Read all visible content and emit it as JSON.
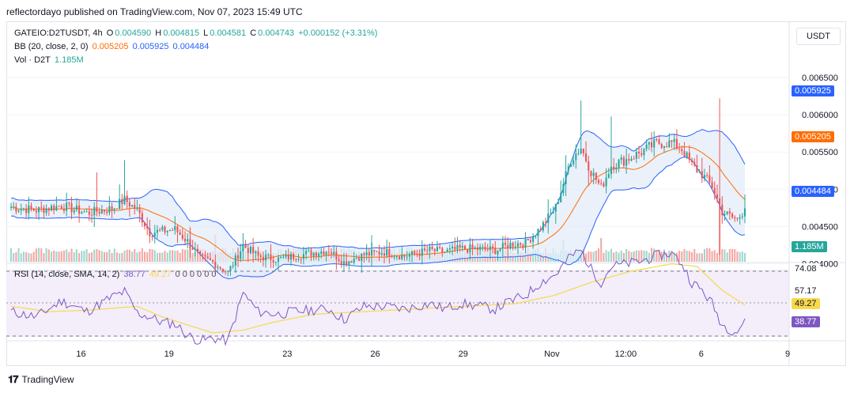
{
  "header": {
    "publisher": "reflectordayo published on TradingView.com, Nov 07, 2023 15:49 UTC"
  },
  "legend": {
    "symbol": "GATEIO:D2TUSDT, 4h",
    "ohlc": [
      {
        "k": "O",
        "v": "0.004590"
      },
      {
        "k": "H",
        "v": "0.004815"
      },
      {
        "k": "L",
        "v": "0.004581"
      },
      {
        "k": "C",
        "v": "0.004743"
      }
    ],
    "change": "+0.000152 (+3.31%)",
    "bb_label": "BB (20, close, 2, 0)",
    "bb_basis": "0.005205",
    "bb_upper": "0.005925",
    "bb_lower": "0.004484",
    "vol_label": "Vol · D2T",
    "vol_value": "1.185M",
    "rsi_label": "RSI (14, close, SMA, 14, 2)",
    "rsi_value": "38.77",
    "rsi_ma": "49.27",
    "rsi_extra": "0 0 0 0 0 0"
  },
  "currency": "USDT",
  "footer": {
    "brand": "TradingView"
  },
  "colors": {
    "up": "#26a69a",
    "down": "#ef5350",
    "bb_band": "#2962ff",
    "bb_basis": "#ff6d00",
    "bb_fill": "#e3ecfa",
    "rsi": "#7e57c2",
    "rsi_ma": "#f7d94c",
    "rsi_bg": "#f3eefa"
  },
  "chart_data": {
    "type": "candlestick",
    "price_axis": {
      "ticks": [
        0.0065,
        0.006,
        0.0055,
        0.005,
        0.0045,
        0.004
      ],
      "tick_labels": [
        "0.006500",
        "0.006000",
        "0.005500",
        "0.005000",
        "0.004500",
        "0.004000"
      ]
    },
    "x_ticks": [
      "16",
      "19",
      "23",
      "26",
      "29",
      "Nov",
      "12:00",
      "6",
      "9"
    ],
    "last_labels": {
      "bb_upper": "0.005925",
      "bb_basis": "0.005205",
      "bb_lower": "0.004484",
      "volume": "1.185M"
    },
    "rsi_axis": {
      "labels": [
        "74.08",
        "57.17",
        "49.27",
        "38.77"
      ]
    },
    "close_path": [
      [
        0,
        0.00476
      ],
      [
        10,
        0.00472
      ],
      [
        20,
        0.00478
      ],
      [
        30,
        0.00468
      ],
      [
        40,
        0.00474
      ],
      [
        45,
        0.00486
      ],
      [
        50,
        0.00472
      ],
      [
        55,
        0.00442
      ],
      [
        60,
        0.00444
      ],
      [
        65,
        0.00446
      ],
      [
        70,
        0.0043
      ],
      [
        75,
        0.00408
      ],
      [
        80,
        0.00402
      ],
      [
        86,
        0.00388
      ],
      [
        92,
        0.00424
      ],
      [
        98,
        0.0041
      ],
      [
        106,
        0.00406
      ],
      [
        112,
        0.0041
      ],
      [
        118,
        0.00414
      ],
      [
        126,
        0.00418
      ],
      [
        132,
        0.00402
      ],
      [
        140,
        0.00412
      ],
      [
        148,
        0.00416
      ],
      [
        156,
        0.0041
      ],
      [
        166,
        0.00418
      ],
      [
        172,
        0.00416
      ],
      [
        178,
        0.0042
      ],
      [
        186,
        0.0042
      ],
      [
        192,
        0.00418
      ],
      [
        198,
        0.00426
      ],
      [
        204,
        0.00428
      ],
      [
        210,
        0.00448
      ],
      [
        216,
        0.00476
      ],
      [
        222,
        0.0054
      ],
      [
        226,
        0.00556
      ],
      [
        230,
        0.00524
      ],
      [
        234,
        0.00502
      ],
      [
        238,
        0.00532
      ],
      [
        244,
        0.0054
      ],
      [
        250,
        0.0055
      ],
      [
        256,
        0.00562
      ],
      [
        262,
        0.00562
      ],
      [
        266,
        0.00554
      ],
      [
        270,
        0.00532
      ],
      [
        274,
        0.0052
      ],
      [
        278,
        0.00504
      ],
      [
        282,
        0.0047
      ],
      [
        286,
        0.00462
      ],
      [
        288,
        0.00459
      ],
      [
        291,
        0.00474
      ]
    ],
    "volume_spikes": [
      [
        71,
        3.5
      ],
      [
        81,
        2.6
      ],
      [
        143,
        2.6
      ],
      [
        219,
        2.1
      ],
      [
        234,
        2.3
      ],
      [
        281,
        6.1
      ]
    ],
    "rsi_path": [
      [
        0,
        44
      ],
      [
        10,
        40
      ],
      [
        20,
        52
      ],
      [
        30,
        44
      ],
      [
        40,
        55
      ],
      [
        45,
        59
      ],
      [
        50,
        43
      ],
      [
        55,
        40
      ],
      [
        60,
        36
      ],
      [
        65,
        35
      ],
      [
        70,
        26
      ],
      [
        75,
        22
      ],
      [
        80,
        24
      ],
      [
        86,
        22
      ],
      [
        92,
        58
      ],
      [
        98,
        44
      ],
      [
        106,
        42
      ],
      [
        112,
        44
      ],
      [
        118,
        45
      ],
      [
        126,
        46
      ],
      [
        132,
        38
      ],
      [
        140,
        48
      ],
      [
        148,
        48
      ],
      [
        156,
        46
      ],
      [
        166,
        50
      ],
      [
        172,
        46
      ],
      [
        178,
        50
      ],
      [
        186,
        48
      ],
      [
        192,
        46
      ],
      [
        198,
        52
      ],
      [
        204,
        56
      ],
      [
        210,
        66
      ],
      [
        216,
        72
      ],
      [
        222,
        86
      ],
      [
        226,
        90
      ],
      [
        230,
        76
      ],
      [
        234,
        66
      ],
      [
        238,
        78
      ],
      [
        244,
        80
      ],
      [
        250,
        82
      ],
      [
        256,
        86
      ],
      [
        262,
        88
      ],
      [
        266,
        80
      ],
      [
        270,
        66
      ],
      [
        274,
        60
      ],
      [
        278,
        50
      ],
      [
        282,
        34
      ],
      [
        286,
        30
      ],
      [
        288,
        29
      ],
      [
        291,
        38
      ]
    ],
    "rsi_ma_path": [
      [
        0,
        48
      ],
      [
        15,
        44
      ],
      [
        30,
        45
      ],
      [
        50,
        48
      ],
      [
        60,
        40
      ],
      [
        70,
        34
      ],
      [
        80,
        28
      ],
      [
        92,
        30
      ],
      [
        104,
        36
      ],
      [
        120,
        42
      ],
      [
        140,
        44
      ],
      [
        170,
        47
      ],
      [
        200,
        50
      ],
      [
        215,
        56
      ],
      [
        230,
        66
      ],
      [
        245,
        74
      ],
      [
        262,
        80
      ],
      [
        272,
        78
      ],
      [
        282,
        60
      ],
      [
        291,
        49
      ]
    ]
  }
}
